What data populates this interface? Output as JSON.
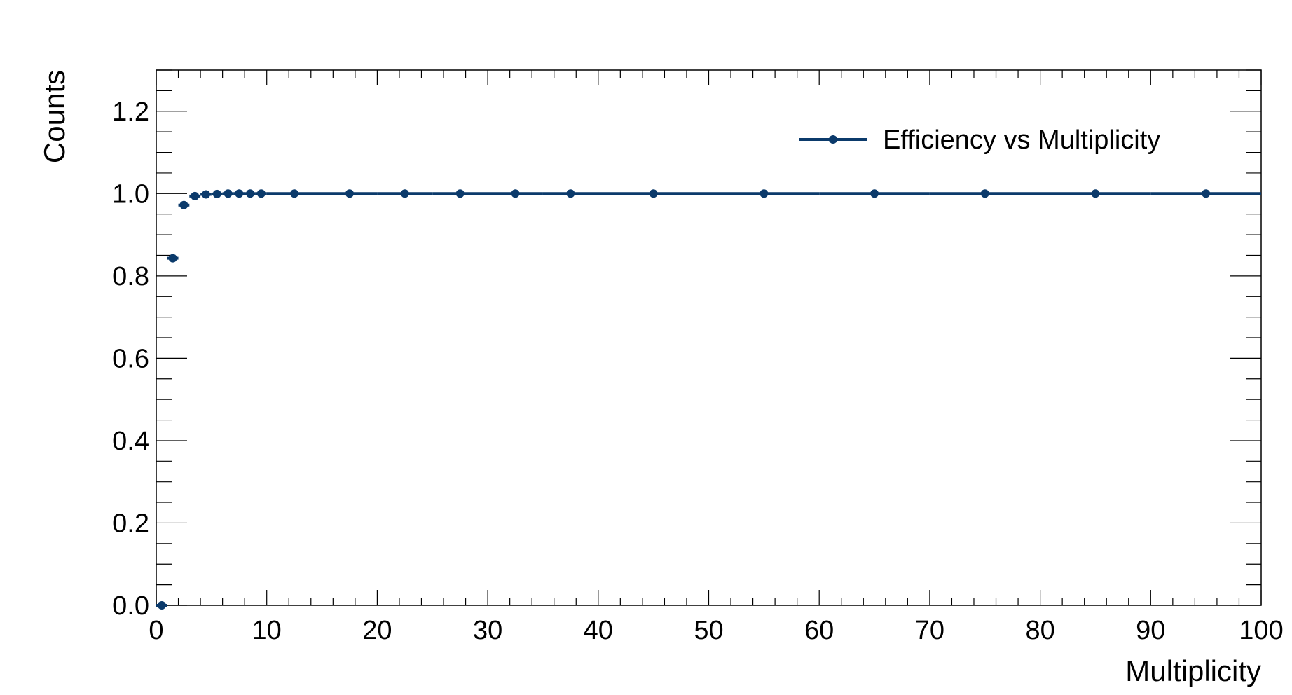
{
  "chart_data": {
    "type": "scatter",
    "title": "",
    "xlabel": "Multiplicity",
    "ylabel": "Counts",
    "xlim": [
      0,
      100
    ],
    "ylim": [
      0,
      1.3
    ],
    "x_ticks": [
      0,
      10,
      20,
      30,
      40,
      50,
      60,
      70,
      80,
      90,
      100
    ],
    "x_tick_labels": [
      "0",
      "10",
      "20",
      "30",
      "40",
      "50",
      "60",
      "70",
      "80",
      "90",
      "100"
    ],
    "y_ticks": [
      0,
      0.2,
      0.4,
      0.6,
      0.8,
      1.0,
      1.2
    ],
    "y_tick_labels": [
      "0.0",
      "0.2",
      "0.4",
      "0.6",
      "0.8",
      "1.0",
      "1.2"
    ],
    "grid": false,
    "legend_position": "top-right",
    "color": "#0b3a6b",
    "series": [
      {
        "name": "Efficiency vs Multiplicity",
        "points": [
          {
            "x": 0.5,
            "y": 0.0,
            "xlo": 0,
            "xhi": 1
          },
          {
            "x": 1.5,
            "y": 0.843,
            "xlo": 1,
            "xhi": 2
          },
          {
            "x": 2.5,
            "y": 0.972,
            "xlo": 2,
            "xhi": 3
          },
          {
            "x": 3.5,
            "y": 0.994,
            "xlo": 3,
            "xhi": 4
          },
          {
            "x": 4.5,
            "y": 0.998,
            "xlo": 4,
            "xhi": 5
          },
          {
            "x": 5.5,
            "y": 0.999,
            "xlo": 5,
            "xhi": 6
          },
          {
            "x": 6.5,
            "y": 1.0,
            "xlo": 6,
            "xhi": 7
          },
          {
            "x": 7.5,
            "y": 1.0,
            "xlo": 7,
            "xhi": 8
          },
          {
            "x": 8.5,
            "y": 1.0,
            "xlo": 8,
            "xhi": 9
          },
          {
            "x": 9.5,
            "y": 1.0,
            "xlo": 9,
            "xhi": 10
          },
          {
            "x": 12.5,
            "y": 1.0,
            "xlo": 10,
            "xhi": 15
          },
          {
            "x": 17.5,
            "y": 1.0,
            "xlo": 15,
            "xhi": 20
          },
          {
            "x": 22.5,
            "y": 1.0,
            "xlo": 20,
            "xhi": 25
          },
          {
            "x": 27.5,
            "y": 1.0,
            "xlo": 25,
            "xhi": 30
          },
          {
            "x": 32.5,
            "y": 1.0,
            "xlo": 30,
            "xhi": 35
          },
          {
            "x": 37.5,
            "y": 1.0,
            "xlo": 35,
            "xhi": 40
          },
          {
            "x": 45,
            "y": 1.0,
            "xlo": 40,
            "xhi": 50
          },
          {
            "x": 55,
            "y": 1.0,
            "xlo": 50,
            "xhi": 60
          },
          {
            "x": 65,
            "y": 1.0,
            "xlo": 60,
            "xhi": 70
          },
          {
            "x": 75,
            "y": 1.0,
            "xlo": 70,
            "xhi": 80
          },
          {
            "x": 85,
            "y": 1.0,
            "xlo": 80,
            "xhi": 90
          },
          {
            "x": 95,
            "y": 1.0,
            "xlo": 90,
            "xhi": 100
          }
        ]
      }
    ]
  }
}
